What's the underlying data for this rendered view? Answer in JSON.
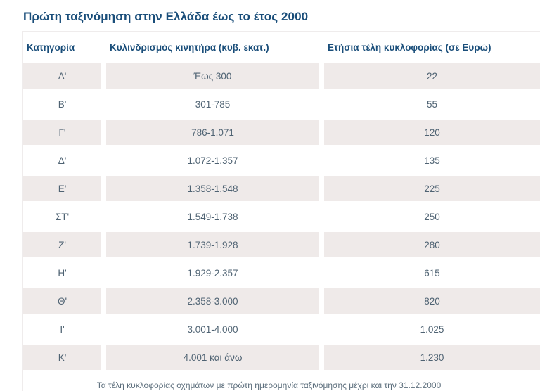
{
  "title": "Πρώτη ταξινόμηση στην Ελλάδα έως το έτος 2000",
  "colors": {
    "heading_blue": "#1a4e7a",
    "body_text": "#4f6373",
    "row_stripe": "#efeae9",
    "footnote_text": "#5d6f7d",
    "border": "#efecec"
  },
  "table": {
    "columns": [
      "Κατηγορία",
      "Κυλινδρισμός κινητήρα (κυβ. εκατ.)",
      "Ετήσια τέλη κυκλοφορίας (σε Ευρώ)"
    ],
    "rows": [
      {
        "category": "Α'",
        "displacement": "Έως 300",
        "fee": "22"
      },
      {
        "category": "Β'",
        "displacement": "301-785",
        "fee": "55"
      },
      {
        "category": "Γ'",
        "displacement": "786-1.071",
        "fee": "120"
      },
      {
        "category": "Δ'",
        "displacement": "1.072-1.357",
        "fee": "135"
      },
      {
        "category": "Ε'",
        "displacement": "1.358-1.548",
        "fee": "225"
      },
      {
        "category": "ΣΤ'",
        "displacement": "1.549-1.738",
        "fee": "250"
      },
      {
        "category": "Ζ'",
        "displacement": "1.739-1.928",
        "fee": "280"
      },
      {
        "category": "Η'",
        "displacement": "1.929-2.357",
        "fee": "615"
      },
      {
        "category": "Θ'",
        "displacement": "2.358-3.000",
        "fee": "820"
      },
      {
        "category": "Ι'",
        "displacement": "3.001-4.000",
        "fee": "1.025"
      },
      {
        "category": "Κ'",
        "displacement": "4.001 και άνω",
        "fee": "1.230"
      }
    ]
  },
  "footnote": "Τα τέλη κυκλοφορίας οχημάτων με πρώτη ημερομηνία ταξινόμησης μέχρι και την 31.12.2000"
}
